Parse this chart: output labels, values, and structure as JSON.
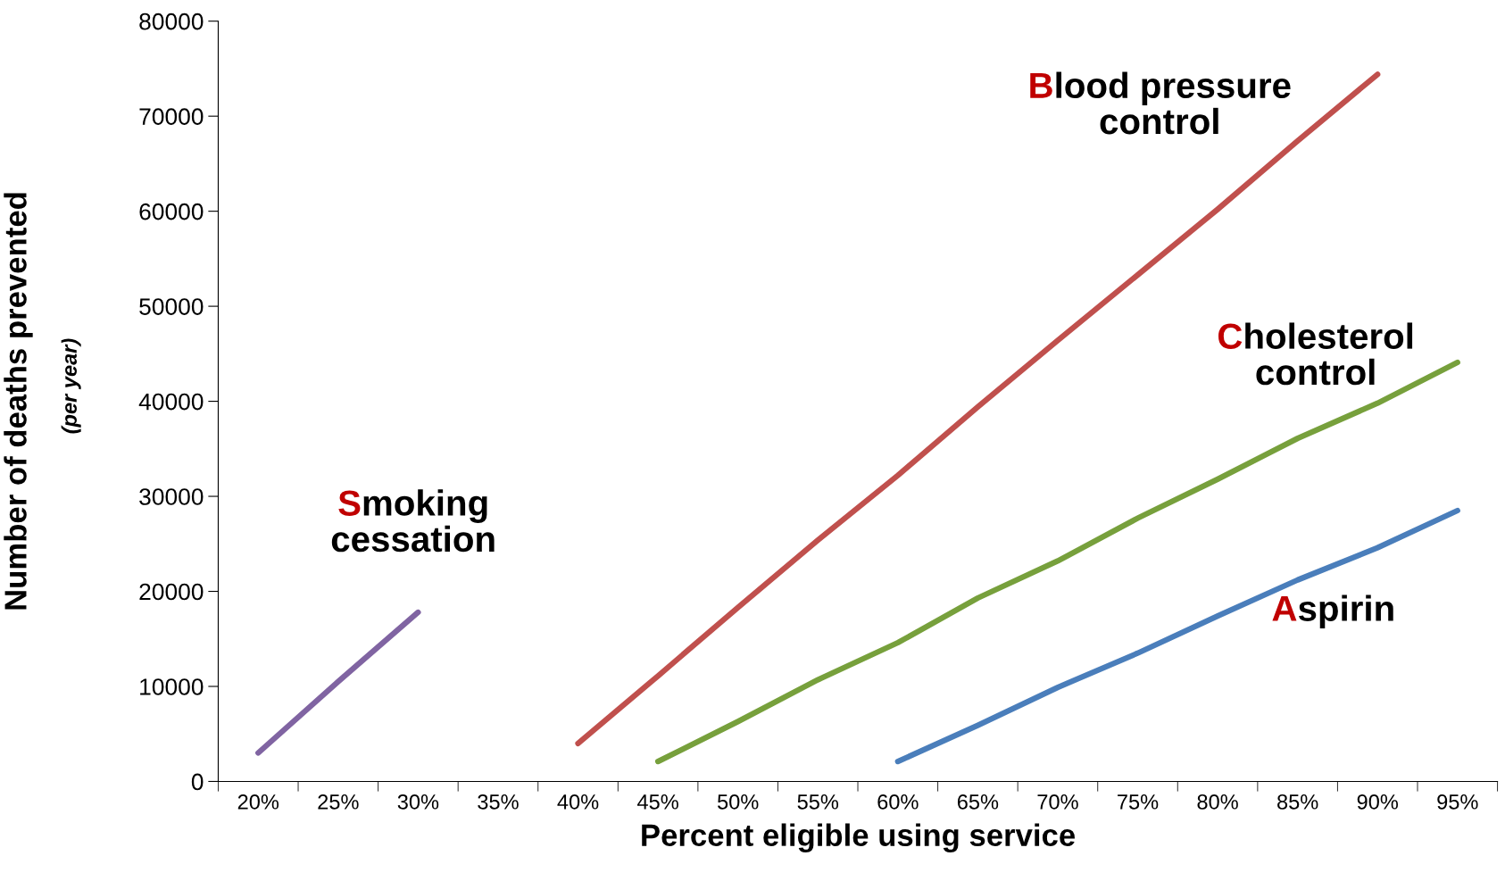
{
  "chart_data": {
    "type": "line",
    "xlabel": "Percent eligible using service",
    "ylabel": "Number of deaths prevented",
    "annotations": [
      "(per year)"
    ],
    "categories": [
      "20%",
      "25%",
      "30%",
      "35%",
      "40%",
      "45%",
      "50%",
      "55%",
      "60%",
      "65%",
      "70%",
      "75%",
      "80%",
      "85%",
      "90%",
      "95%"
    ],
    "series": [
      {
        "name": "Smoking\ncessation",
        "color": "#8064a2",
        "values": [
          3000,
          10500,
          17800,
          null,
          null,
          null,
          null,
          null,
          null,
          null,
          null,
          null,
          null,
          null,
          null,
          null
        ]
      },
      {
        "name": "Blood pressure\ncontrol",
        "color": "#c0504d",
        "values": [
          null,
          null,
          null,
          null,
          4000,
          11100,
          18300,
          25400,
          32200,
          39400,
          46400,
          53300,
          60200,
          67400,
          74400,
          null
        ]
      },
      {
        "name": "Cholesterol\ncontrol",
        "color": "#77a03c",
        "values": [
          null,
          null,
          null,
          null,
          null,
          2100,
          6300,
          10700,
          14600,
          19300,
          23200,
          27700,
          31800,
          36100,
          39800,
          44100
        ]
      },
      {
        "name": "Aspirin",
        "color": "#4a7ebb",
        "values": [
          null,
          null,
          null,
          null,
          null,
          null,
          null,
          null,
          2100,
          5900,
          9900,
          13500,
          17400,
          21200,
          24600,
          28500
        ]
      }
    ],
    "ylim": [
      0,
      80000
    ],
    "yticks": [
      0,
      10000,
      20000,
      30000,
      40000,
      50000,
      60000,
      70000,
      80000
    ],
    "grid": false,
    "legend": false,
    "marker": "none",
    "line_style": "solid"
  }
}
